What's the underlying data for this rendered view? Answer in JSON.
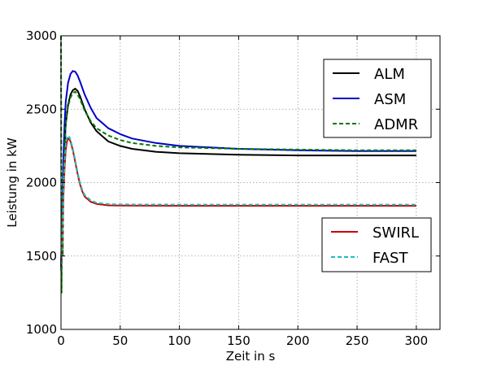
{
  "chart_data": {
    "type": "line",
    "title": "",
    "xlabel": "Zeit in s",
    "ylabel": "Leistung in kW",
    "xlim": [
      0,
      320
    ],
    "ylim": [
      1000,
      3000
    ],
    "xticks": [
      0,
      50,
      100,
      150,
      200,
      250,
      300
    ],
    "yticks": [
      1000,
      1500,
      2000,
      2500,
      3000
    ],
    "grid": true,
    "legends": [
      {
        "placement": "upper-right",
        "entries": [
          "ALM",
          "ASM",
          "ADMR"
        ]
      },
      {
        "placement": "lower-right",
        "entries": [
          "SWIRL",
          "FAST"
        ]
      }
    ],
    "series": [
      {
        "name": "ALM",
        "color": "#000000",
        "dash": "solid",
        "x": [
          0,
          1,
          2,
          3,
          4,
          6,
          8,
          10,
          12,
          14,
          16,
          20,
          25,
          30,
          40,
          50,
          60,
          80,
          100,
          150,
          200,
          250,
          300
        ],
        "y": [
          1400,
          1750,
          2050,
          2250,
          2400,
          2530,
          2600,
          2630,
          2640,
          2625,
          2590,
          2500,
          2410,
          2350,
          2280,
          2250,
          2230,
          2210,
          2200,
          2190,
          2185,
          2185,
          2185
        ]
      },
      {
        "name": "ASM",
        "color": "#0000cc",
        "dash": "solid",
        "x": [
          0,
          1,
          2,
          3,
          4,
          6,
          8,
          10,
          12,
          14,
          16,
          20,
          25,
          30,
          40,
          50,
          60,
          80,
          100,
          150,
          200,
          250,
          300
        ],
        "y": [
          1400,
          1800,
          2150,
          2400,
          2550,
          2680,
          2740,
          2760,
          2755,
          2730,
          2690,
          2600,
          2510,
          2440,
          2370,
          2330,
          2300,
          2270,
          2250,
          2230,
          2220,
          2215,
          2215
        ]
      },
      {
        "name": "ADMR",
        "color": "#007a00",
        "dash": "dashed",
        "x": [
          0,
          0.5,
          1,
          1.5,
          2,
          3,
          4,
          6,
          8,
          10,
          12,
          14,
          16,
          20,
          25,
          30,
          40,
          50,
          60,
          80,
          100,
          150,
          200,
          250,
          300
        ],
        "y": [
          3000,
          1250,
          1800,
          1500,
          2000,
          2200,
          2400,
          2520,
          2580,
          2610,
          2620,
          2600,
          2570,
          2490,
          2420,
          2370,
          2320,
          2290,
          2270,
          2250,
          2240,
          2230,
          2225,
          2220,
          2220
        ]
      },
      {
        "name": "SWIRL",
        "color": "#cc0000",
        "dash": "solid",
        "x": [
          0,
          1,
          2,
          3,
          4,
          5,
          6,
          7,
          8,
          10,
          12,
          14,
          16,
          18,
          20,
          25,
          30,
          40,
          50,
          100,
          200,
          300
        ],
        "y": [
          1400,
          1600,
          1900,
          2100,
          2220,
          2280,
          2300,
          2295,
          2280,
          2220,
          2140,
          2060,
          1990,
          1940,
          1905,
          1870,
          1855,
          1845,
          1843,
          1842,
          1842,
          1842
        ]
      },
      {
        "name": "FAST",
        "color": "#22bbbb",
        "dash": "dashed",
        "x": [
          0,
          1,
          2,
          3,
          4,
          5,
          6,
          7,
          8,
          10,
          12,
          14,
          16,
          18,
          20,
          25,
          30,
          40,
          50,
          100,
          200,
          300
        ],
        "y": [
          1400,
          1650,
          1950,
          2150,
          2260,
          2310,
          2320,
          2310,
          2290,
          2230,
          2150,
          2070,
          2000,
          1950,
          1915,
          1880,
          1862,
          1853,
          1851,
          1850,
          1850,
          1850
        ]
      }
    ]
  }
}
